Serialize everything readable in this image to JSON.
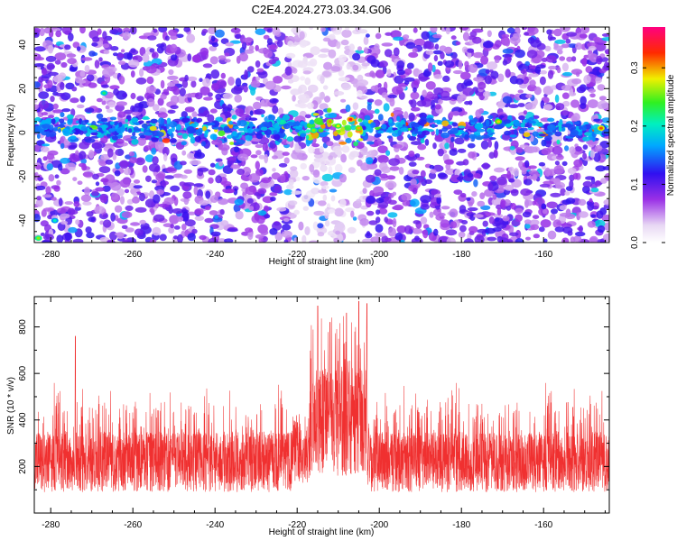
{
  "title": "C2E4.2024.273.03.34.G06",
  "colors": {
    "snr_line": "#f03030",
    "frame": "#000000",
    "background": "#ffffff"
  },
  "chart_data": [
    {
      "type": "heatmap",
      "xlabel": "Height of straight line (km)",
      "ylabel": "Frequency (Hz)",
      "xlim": [
        -284,
        -144
      ],
      "ylim": [
        -50,
        48
      ],
      "xticks": [
        -280,
        -260,
        -240,
        -220,
        -200,
        -180,
        -160
      ],
      "yticks": [
        -40,
        -20,
        0,
        20,
        40
      ],
      "colorbar": {
        "label": "Normalized spectral amplitude",
        "range": [
          0.0,
          0.37
        ],
        "ticks": [
          0.0,
          0.1,
          0.2,
          0.3
        ],
        "tick_labels": [
          "0.0",
          "0.1",
          "0.2",
          "0.3"
        ],
        "colormap": "rainbow (white-purple-blue-cyan-green-yellow-red-magenta)"
      },
      "features": {
        "ridge_frequency_hz": 2,
        "strongest_region_km": [
          -218,
          -204
        ],
        "peak_amplitude": 0.36
      }
    },
    {
      "type": "line",
      "xlabel": "Height of straight line (km)",
      "ylabel": "SNR (10 * v/v)",
      "xlim": [
        -284,
        -144
      ],
      "ylim": [
        0,
        930
      ],
      "xticks": [
        -280,
        -260,
        -240,
        -220,
        -200,
        -180,
        -160
      ],
      "yticks": [
        200,
        400,
        600,
        800
      ],
      "baseline_range": [
        90,
        350
      ],
      "peaks": [
        {
          "x": -274,
          "y": 760
        },
        {
          "x": -215,
          "y": 890
        },
        {
          "x": -212,
          "y": 820
        },
        {
          "x": -208,
          "y": 860
        },
        {
          "x": -205,
          "y": 910
        },
        {
          "x": -203,
          "y": 900
        }
      ]
    }
  ]
}
